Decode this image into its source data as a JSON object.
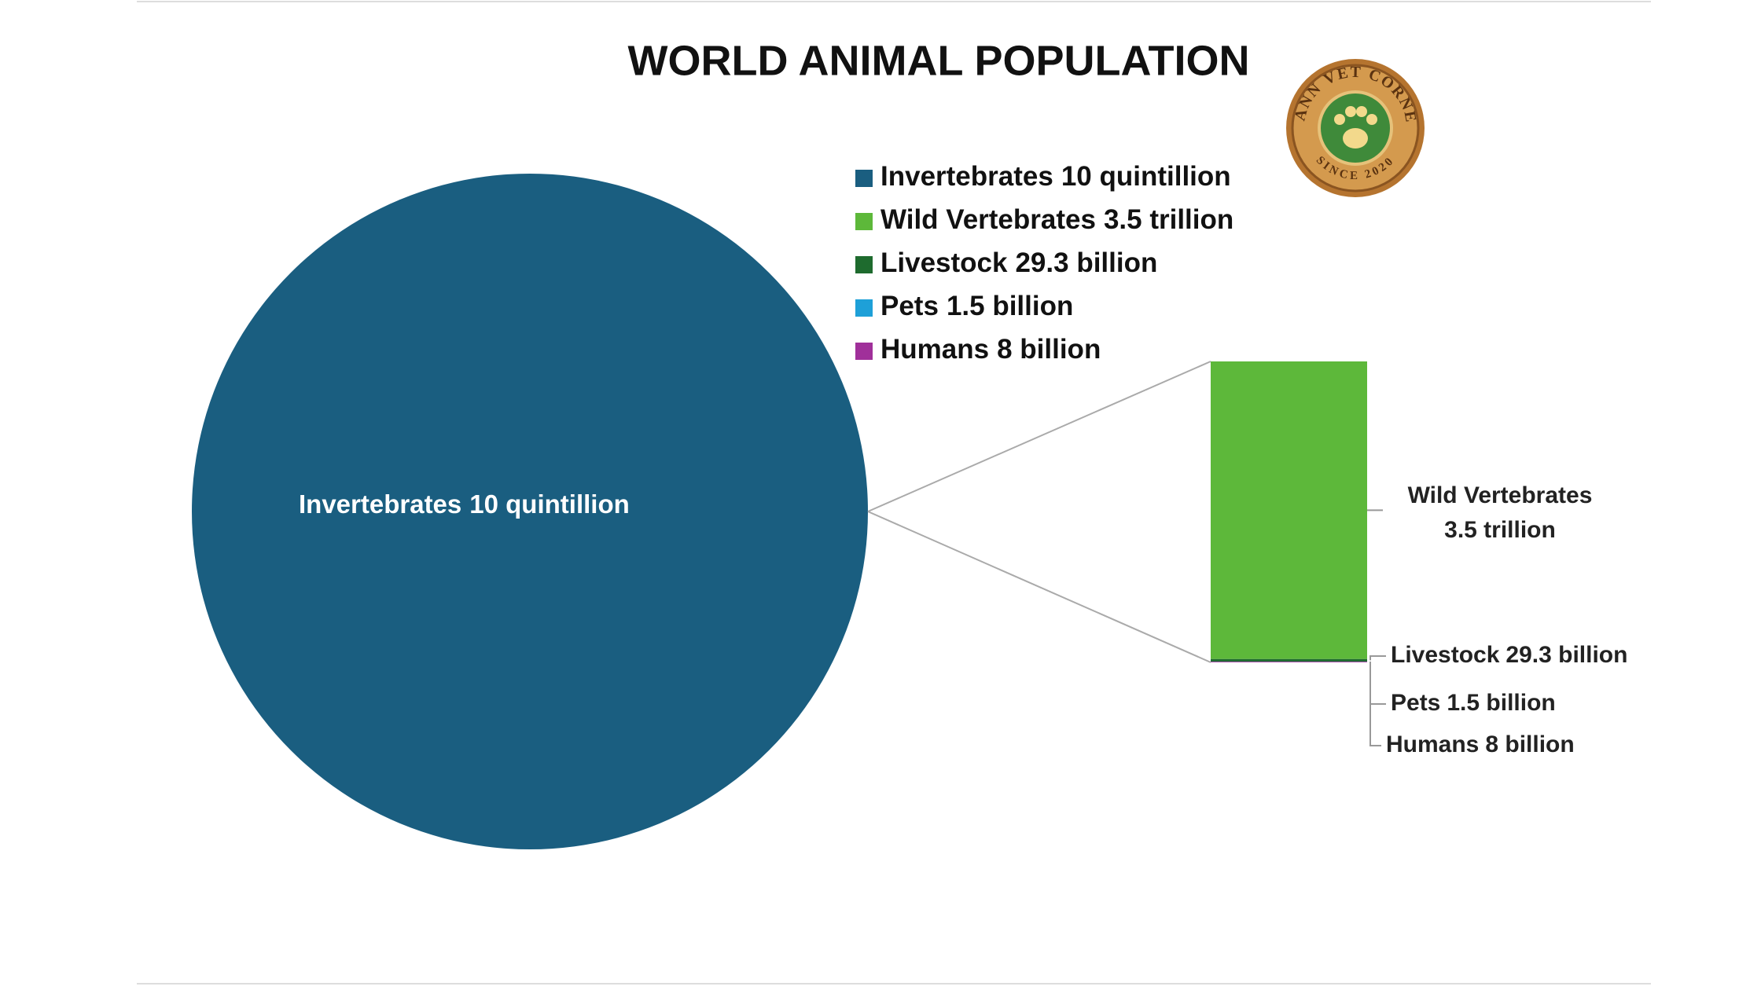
{
  "chart_data": {
    "type": "bar-of-pie",
    "title": "WORLD ANIMAL POPULATION",
    "categories": [
      "Invertebrates",
      "Wild Vertebrates",
      "Livestock",
      "Pets",
      "Humans"
    ],
    "values": [
      10000000000000000000,
      3500000000000,
      29300000000,
      1500000000,
      8000000000
    ],
    "value_labels": [
      "10 quintillion",
      "3.5 trillion",
      "29.3 billion",
      "1.5 billion",
      "8 billion"
    ],
    "colors": [
      "#1a5e80",
      "#5db83a",
      "#1e6b2e",
      "#1ea0d8",
      "#a0309a"
    ],
    "second_plot_count": 4,
    "legend": "top-right"
  },
  "logo": {
    "top_text": "MANN VET CORNER",
    "bottom_text": "SINCE 2020"
  }
}
